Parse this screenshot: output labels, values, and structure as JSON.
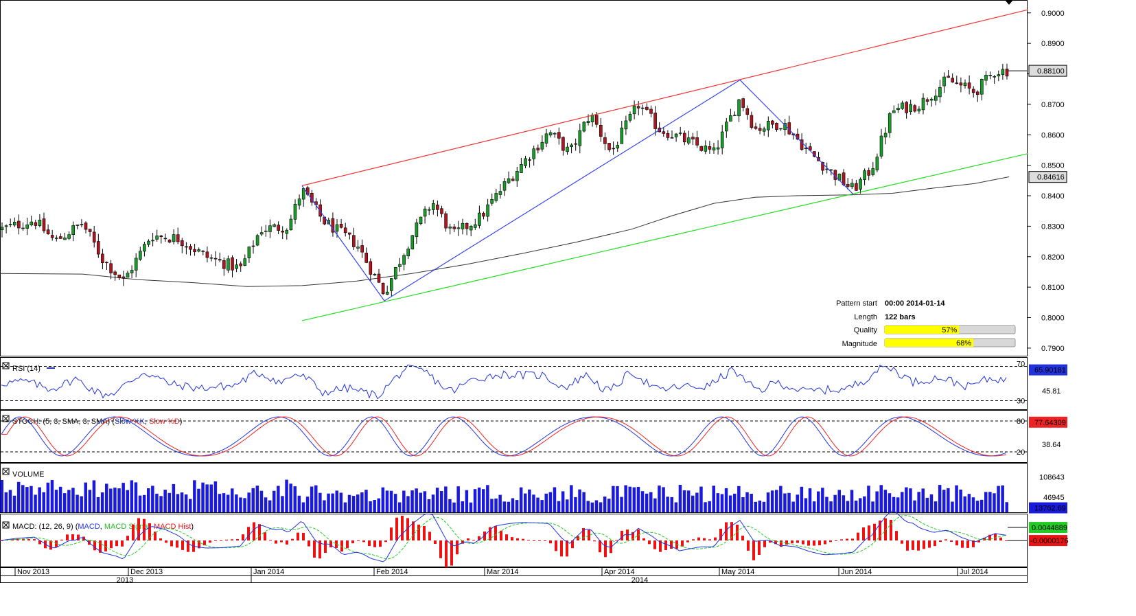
{
  "chart_data": [
    {
      "type": "candlestick",
      "title": "",
      "price_axis_ticks": [
        "0.9000",
        "0.8900",
        "0.8800",
        "0.8700",
        "0.8600",
        "0.8500",
        "0.8400",
        "0.8300",
        "0.8200",
        "0.8100",
        "0.8000",
        "0.7900"
      ],
      "ylim": [
        0.7875,
        0.904
      ],
      "current_price_label": "0.88100",
      "ma_value_label": "0.84616",
      "x_month_labels": [
        "Nov 2013",
        "Dec 2013",
        "Jan 2014",
        "Feb 2014",
        "Mar 2014",
        "Apr 2014",
        "May 2014",
        "Jun 2014",
        "Jul 2014"
      ],
      "x_year_labels": [
        "2013",
        "2014"
      ],
      "ma_path": [
        [
          0,
          0.8145
        ],
        [
          120,
          0.8143
        ],
        [
          200,
          0.8125
        ],
        [
          280,
          0.8115
        ],
        [
          360,
          0.8102
        ],
        [
          440,
          0.8105
        ],
        [
          520,
          0.812
        ],
        [
          600,
          0.8145
        ],
        [
          680,
          0.8175
        ],
        [
          760,
          0.821
        ],
        [
          840,
          0.8248
        ],
        [
          920,
          0.829
        ],
        [
          980,
          0.8335
        ],
        [
          1040,
          0.8375
        ],
        [
          1100,
          0.8395
        ],
        [
          1160,
          0.84
        ],
        [
          1240,
          0.8403
        ],
        [
          1300,
          0.8408
        ],
        [
          1360,
          0.8425
        ],
        [
          1420,
          0.844
        ],
        [
          1470,
          0.8462
        ]
      ],
      "resistance_line": [
        [
          440,
          0.8433
        ],
        [
          1497,
          0.901
        ]
      ],
      "support_line": [
        [
          440,
          0.799
        ],
        [
          1497,
          0.8538
        ]
      ],
      "zigzag": [
        [
          440,
          0.8433
        ],
        [
          560,
          0.8055
        ],
        [
          1078,
          0.878
        ],
        [
          1243,
          0.8405
        ]
      ],
      "pattern_info": {
        "pattern_start_label": "Pattern start",
        "pattern_start_value": "00:00 2014-01-14",
        "length_label": "Length",
        "length_value": "122 bars",
        "quality_label": "Quality",
        "quality_value": "57%",
        "quality_fraction": 0.57,
        "magnitude_label": "Magnitude",
        "magnitude_value": "68%",
        "magnitude_fraction": 0.68
      },
      "colors": {
        "up": "#1a9c2a",
        "down": "#b0141e",
        "resistance": "#ee3333",
        "support": "#22dd22",
        "zigzag": "#3344ee",
        "ma": "#333333"
      }
    },
    {
      "type": "line",
      "title": "RSI (14)",
      "levels": [
        "70",
        "30"
      ],
      "mid_label": "45.81",
      "value_label": "65.90181",
      "ylim": [
        20,
        80
      ],
      "series": [
        {
          "name": "RSI",
          "color": "#2233dd"
        }
      ]
    },
    {
      "type": "line",
      "title_parts": [
        "STOCH: (5, 3, SMA, 3, SMA) (",
        "Slow %K",
        ", ",
        "Slow %D",
        ")"
      ],
      "levels": [
        "80",
        "20"
      ],
      "mid_label": "38.64",
      "value_label": "77.64309",
      "ylim": [
        0,
        100
      ],
      "series": [
        {
          "name": "Slow %K",
          "color": "#2233dd"
        },
        {
          "name": "Slow %D",
          "color": "#ee2222"
        }
      ]
    },
    {
      "type": "bar",
      "title": "VOLUME",
      "axis_labels": [
        "108643",
        "46945"
      ],
      "value_label": "13762.69",
      "ylim": [
        0,
        150000
      ],
      "color": "#1a1add"
    },
    {
      "type": "bar",
      "title_parts": [
        "MACD: (12, 26, 9) (",
        "MACD",
        ", ",
        "MACD Signal",
        ", ",
        "MACD Hist",
        ")"
      ],
      "value_label_macd": "0.0044889",
      "value_label_hist": "-0.0000176",
      "ylim": [
        -0.009,
        0.009
      ],
      "series": [
        {
          "name": "MACD",
          "color": "#2233dd"
        },
        {
          "name": "MACD Signal",
          "color": "#22cc22"
        },
        {
          "name": "MACD Hist",
          "color": "#ee1111"
        }
      ]
    }
  ]
}
